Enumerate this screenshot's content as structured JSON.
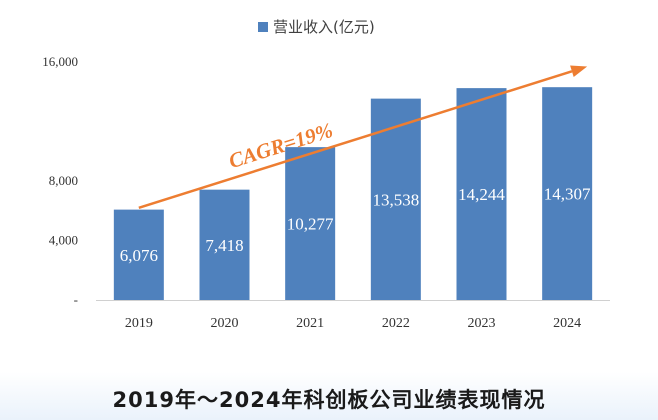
{
  "caption": "2019年～2024年科创板公司业绩表现情况",
  "chart_data": {
    "type": "bar",
    "categories": [
      "2019",
      "2020",
      "2021",
      "2022",
      "2023",
      "2024"
    ],
    "series": [
      {
        "name": "营业收入(亿元)",
        "values": [
          6076,
          7418,
          10277,
          13538,
          14244,
          14307
        ],
        "labels": [
          "6,076",
          "7,418",
          "10,277",
          "13,538",
          "14,244",
          "14,307"
        ]
      }
    ],
    "y_ticks": [
      {
        "value": 0,
        "label": "-"
      },
      {
        "value": 4000,
        "label": "4,000"
      },
      {
        "value": 8000,
        "label": "8,000"
      },
      {
        "value": 12000,
        "label": ""
      },
      {
        "value": 16000,
        "label": "16,000"
      }
    ],
    "ylim": [
      0,
      16000
    ],
    "grid": false,
    "legend_position": "top-center",
    "annotation": {
      "text": "CAGR=19%",
      "arrow_from": {
        "category": "2019",
        "value": 6200
      },
      "arrow_to": {
        "category": "2024",
        "value": 15700
      }
    },
    "colors": {
      "bar": "#4f81bd",
      "annotation": "#ed7d31"
    }
  }
}
